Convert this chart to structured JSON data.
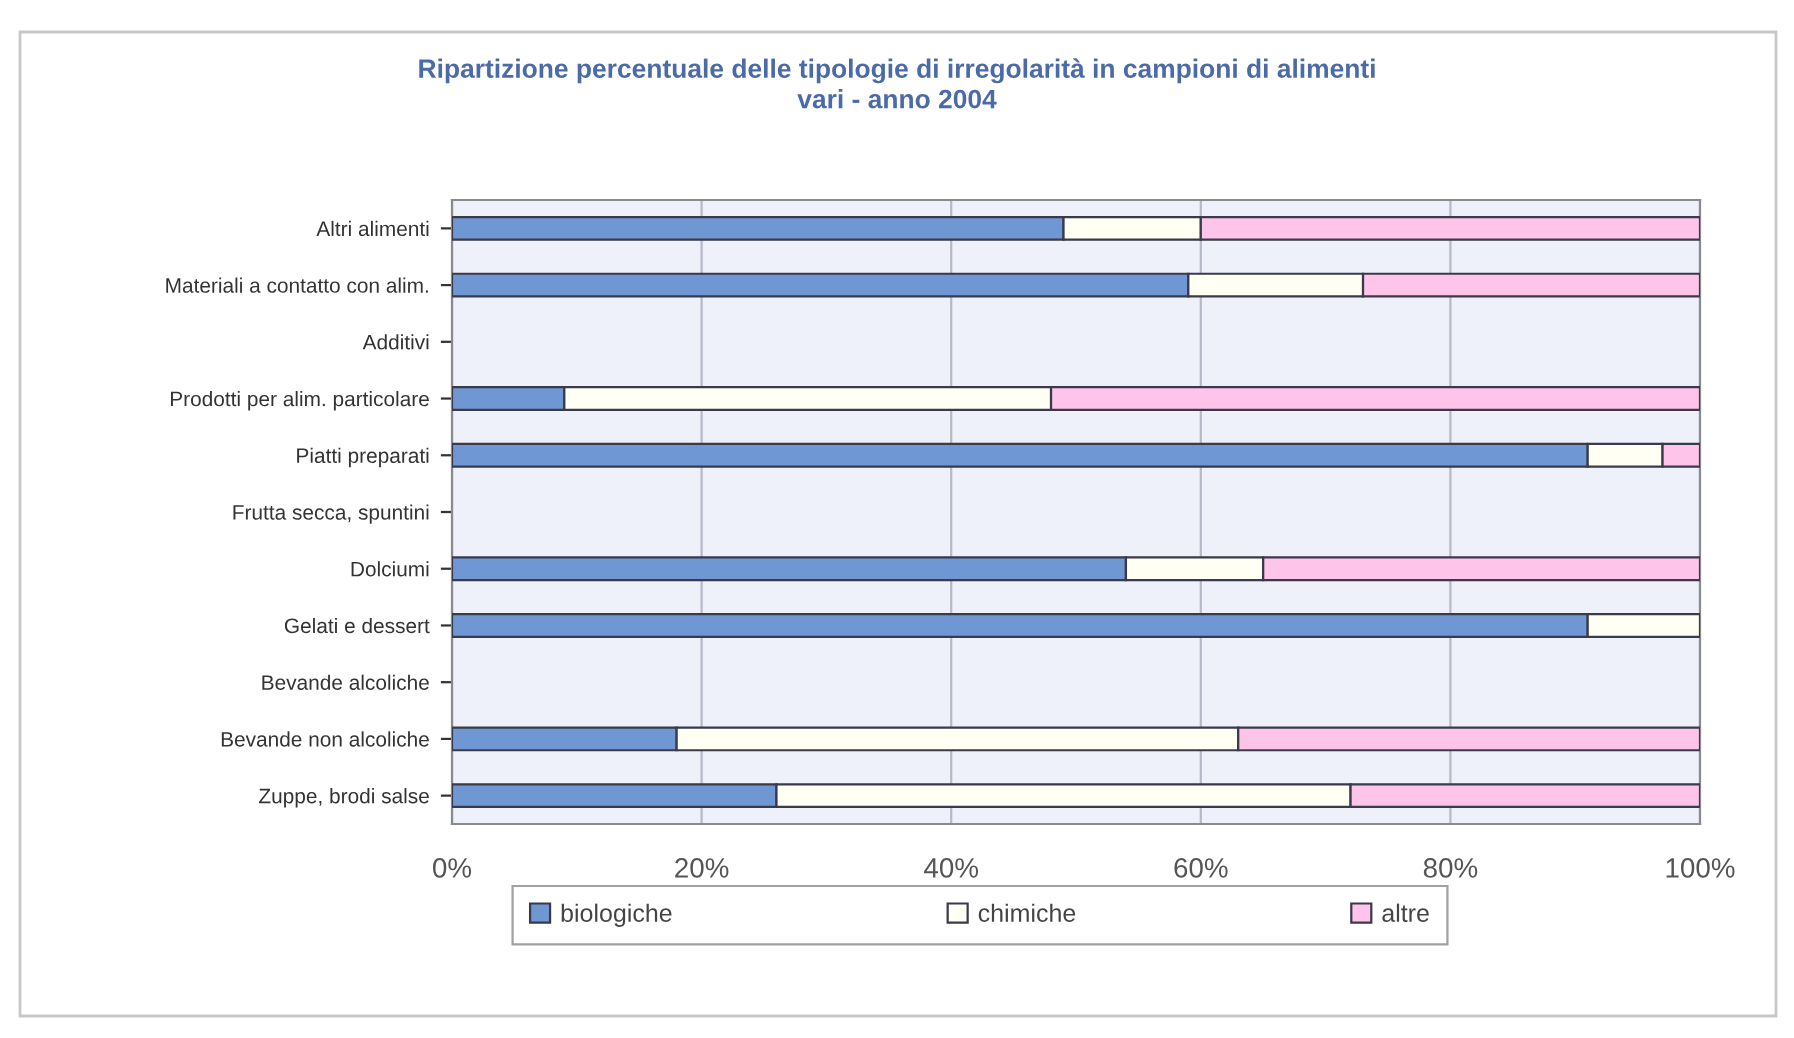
{
  "chart_data": {
    "type": "bar",
    "orientation": "horizontal",
    "stacked": true,
    "title": "Ripartizione percentuale delle tipologie di irregolarità in campioni di alimenti\nvari - anno 2004",
    "categories": [
      "Altri alimenti",
      "Materiali a contatto con alim.",
      "Additivi",
      "Prodotti per alim. particolare",
      "Piatti preparati",
      "Frutta secca, spuntini",
      "Dolciumi",
      "Gelati e dessert",
      "Bevande alcoliche",
      "Bevande non alcoliche",
      "Zuppe, brodi salse"
    ],
    "series": [
      {
        "name": "biologiche",
        "color": "#6f97d3",
        "values": [
          49,
          59,
          null,
          9,
          91,
          null,
          54,
          91,
          null,
          18,
          26
        ]
      },
      {
        "name": "chimiche",
        "color": "#fffff4",
        "values": [
          11,
          14,
          null,
          39,
          6,
          null,
          11,
          9,
          null,
          45,
          46
        ]
      },
      {
        "name": "altre",
        "color": "#ffc4ea",
        "values": [
          40,
          27,
          null,
          52,
          3,
          null,
          35,
          null,
          null,
          37,
          28
        ]
      }
    ],
    "xlim": [
      0,
      100
    ],
    "xticks": [
      {
        "value": 0,
        "label": "0%"
      },
      {
        "value": 20,
        "label": "20%"
      },
      {
        "value": 40,
        "label": "40%"
      },
      {
        "value": 60,
        "label": "60%"
      },
      {
        "value": 80,
        "label": "80%"
      },
      {
        "value": 100,
        "label": "100%"
      }
    ],
    "grid": "x",
    "legend": "bottom"
  }
}
